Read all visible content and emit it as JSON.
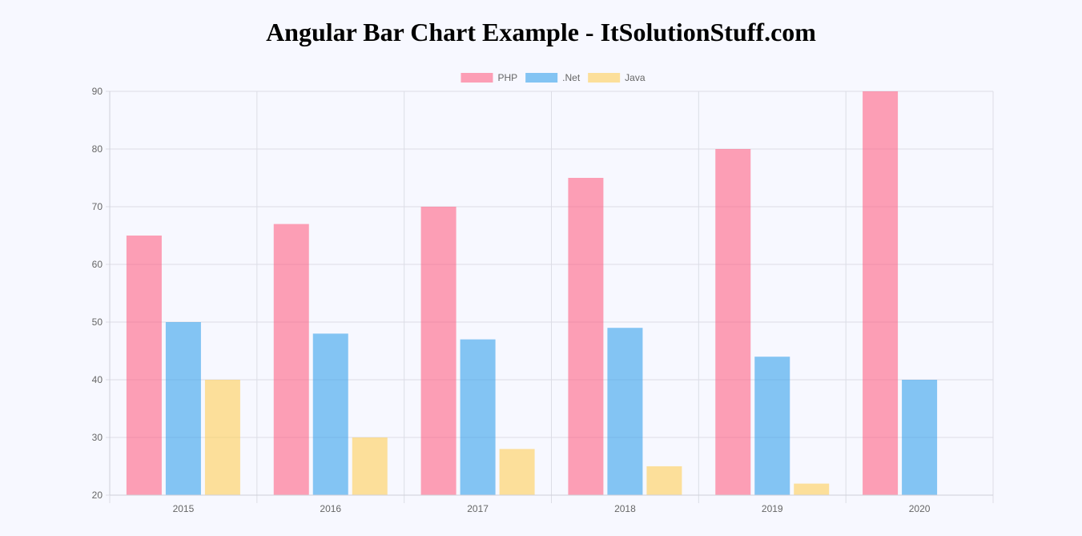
{
  "page": {
    "title": "Angular Bar Chart Example - ItSolutionStuff.com"
  },
  "chart_data": {
    "type": "bar",
    "categories": [
      "2015",
      "2016",
      "2017",
      "2018",
      "2019",
      "2020"
    ],
    "series": [
      {
        "name": "PHP",
        "values": [
          65,
          67,
          70,
          75,
          80,
          90
        ],
        "color": "#ff6384"
      },
      {
        "name": ".Net",
        "values": [
          50,
          48,
          47,
          49,
          44,
          40
        ],
        "color": "#36a2eb"
      },
      {
        "name": "Java",
        "values": [
          40,
          30,
          28,
          25,
          22,
          20
        ],
        "color": "#ffce56"
      }
    ],
    "ylim": [
      20,
      90
    ],
    "yticks": [
      "90",
      "80",
      "70",
      "60",
      "50",
      "40",
      "30",
      "20"
    ],
    "legend": "top",
    "grid": true
  }
}
